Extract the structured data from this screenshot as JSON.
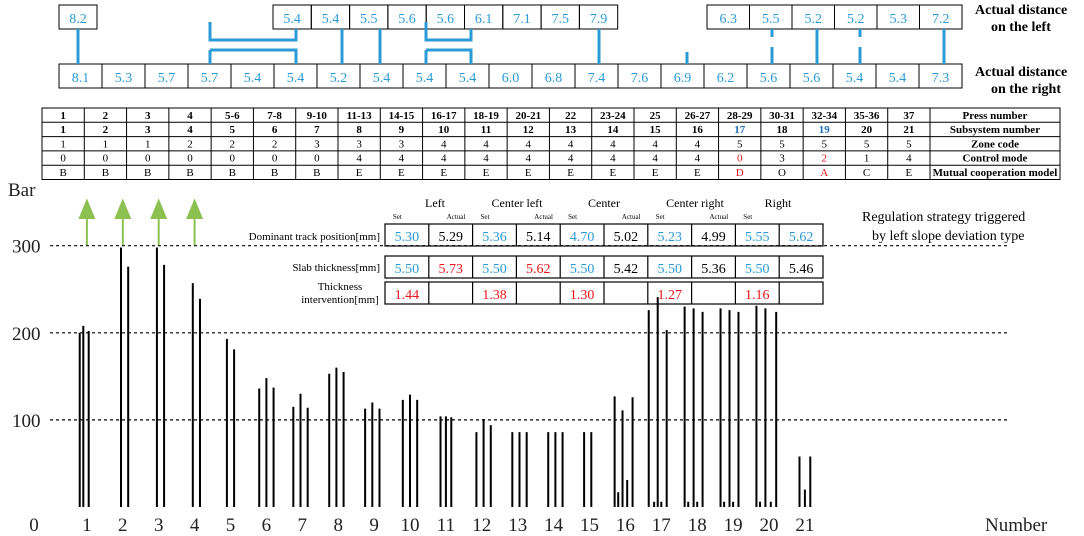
{
  "colors": {
    "blue": "#2a9bd6",
    "red": "#e8151b",
    "black": "#000000",
    "green": "#8cc152"
  },
  "top_rows": {
    "left_label_1": "Actual distance",
    "left_label_2": "on the left",
    "right_label_1": "Actual distance",
    "right_label_2": "on the right",
    "left_values": [
      "8.2",
      "5.4",
      "5.4",
      "5.5",
      "5.6",
      "5.6",
      "6.1",
      "7.1",
      "7.5",
      "7.9",
      "6.3",
      "5.5",
      "5.2",
      "5.2",
      "5.3",
      "7.2"
    ],
    "right_values": [
      "8.1",
      "5.3",
      "5.7",
      "5.7",
      "5.4",
      "5.4",
      "5.2",
      "5.4",
      "5.4",
      "5.4",
      "6.0",
      "6.8",
      "7.4",
      "7.6",
      "6.9",
      "6.2",
      "5.6",
      "5.6",
      "5.4",
      "5.4",
      "7.3"
    ]
  },
  "table": {
    "row_labels": [
      "Press number",
      "Subsystem number",
      "Zone code",
      "Control mode",
      "Mutual cooperation model"
    ],
    "press": [
      "1",
      "2",
      "3",
      "4",
      "5-6",
      "7-8",
      "9-10",
      "11-13",
      "14-15",
      "16-17",
      "18-19",
      "20-21",
      "22",
      "23-24",
      "25",
      "26-27",
      "28-29",
      "30-31",
      "32-34",
      "35-36",
      "37"
    ],
    "subsystem": [
      "1",
      "2",
      "3",
      "4",
      "5",
      "6",
      "7",
      "8",
      "9",
      "10",
      "11",
      "12",
      "13",
      "14",
      "15",
      "16",
      "17",
      "18",
      "19",
      "20",
      "21"
    ],
    "zone": [
      "1",
      "1",
      "1",
      "2",
      "2",
      "2",
      "3",
      "3",
      "3",
      "4",
      "4",
      "4",
      "4",
      "4",
      "4",
      "4",
      "5",
      "5",
      "5",
      "5",
      "5"
    ],
    "control": [
      "0",
      "0",
      "0",
      "0",
      "0",
      "0",
      "0",
      "4",
      "4",
      "4",
      "4",
      "4",
      "4",
      "4",
      "4",
      "4",
      "0",
      "3",
      "2",
      "1",
      "4"
    ],
    "model": [
      "B",
      "B",
      "B",
      "B",
      "B",
      "B",
      "B",
      "E",
      "E",
      "E",
      "E",
      "E",
      "E",
      "E",
      "E",
      "E",
      "D",
      "O",
      "A",
      "C",
      "E"
    ]
  },
  "regulation": {
    "note_1": "Regulation strategy triggered",
    "note_2": "by left slope deviation type",
    "headers": [
      "Left",
      "Center left",
      "Center",
      "Center right",
      "Right"
    ],
    "set_label": "Set",
    "actual_label": "Actual",
    "row_labels": [
      "Dominant track position[mm]",
      "Slab thickness[mm]",
      "Thickness",
      "intervention[mm]"
    ],
    "track": [
      "5.30",
      "5.29",
      "5.36",
      "5.14",
      "4.70",
      "5.02",
      "5.23",
      "4.99",
      "5.55",
      "5.62"
    ],
    "slab": [
      "5.50",
      "5.73",
      "5.50",
      "5.62",
      "5.50",
      "5.42",
      "5.50",
      "5.36",
      "5.50",
      "5.46"
    ],
    "intervention": [
      "1.44",
      "",
      "1.38",
      "",
      "1.30",
      "",
      "1.27",
      "",
      "1.16",
      ""
    ]
  },
  "chart_data": {
    "type": "bar",
    "ylabel": "Bar",
    "xlabel": "Number",
    "ylim": [
      0,
      350
    ],
    "yticks": [
      "100",
      "200",
      "300"
    ],
    "xticks": [
      "0",
      "1",
      "2",
      "3",
      "4",
      "5",
      "6",
      "7",
      "8",
      "9",
      "10",
      "11",
      "12",
      "13",
      "14",
      "15",
      "16",
      "17",
      "18",
      "19",
      "20",
      "21"
    ],
    "gridlines": [
      100,
      200,
      300
    ],
    "bars": [
      {
        "x": 0.8,
        "v": 200
      },
      {
        "x": 0.9,
        "v": 208
      },
      {
        "x": 1.05,
        "v": 202
      },
      {
        "x": 1.95,
        "v": 298
      },
      {
        "x": 2.15,
        "v": 276
      },
      {
        "x": 2.95,
        "v": 298
      },
      {
        "x": 3.15,
        "v": 278
      },
      {
        "x": 3.95,
        "v": 257
      },
      {
        "x": 4.15,
        "v": 239
      },
      {
        "x": 4.9,
        "v": 193
      },
      {
        "x": 5.1,
        "v": 181
      },
      {
        "x": 5.8,
        "v": 136
      },
      {
        "x": 6.0,
        "v": 148
      },
      {
        "x": 6.2,
        "v": 137
      },
      {
        "x": 6.75,
        "v": 115
      },
      {
        "x": 6.95,
        "v": 130
      },
      {
        "x": 7.15,
        "v": 114
      },
      {
        "x": 7.75,
        "v": 153
      },
      {
        "x": 7.95,
        "v": 160
      },
      {
        "x": 8.15,
        "v": 155
      },
      {
        "x": 8.75,
        "v": 113
      },
      {
        "x": 8.95,
        "v": 120
      },
      {
        "x": 9.15,
        "v": 113
      },
      {
        "x": 9.8,
        "v": 123
      },
      {
        "x": 10.0,
        "v": 129
      },
      {
        "x": 10.2,
        "v": 123
      },
      {
        "x": 10.85,
        "v": 104
      },
      {
        "x": 11.0,
        "v": 104
      },
      {
        "x": 11.15,
        "v": 103
      },
      {
        "x": 11.85,
        "v": 86
      },
      {
        "x": 12.05,
        "v": 101
      },
      {
        "x": 12.25,
        "v": 94
      },
      {
        "x": 12.85,
        "v": 86
      },
      {
        "x": 13.05,
        "v": 86
      },
      {
        "x": 13.25,
        "v": 86
      },
      {
        "x": 13.85,
        "v": 86
      },
      {
        "x": 14.05,
        "v": 86
      },
      {
        "x": 14.25,
        "v": 86
      },
      {
        "x": 14.85,
        "v": 86
      },
      {
        "x": 15.05,
        "v": 86
      },
      {
        "x": 15.7,
        "v": 127
      },
      {
        "x": 15.8,
        "v": 17
      },
      {
        "x": 15.92,
        "v": 111
      },
      {
        "x": 16.05,
        "v": 31
      },
      {
        "x": 16.2,
        "v": 126
      },
      {
        "x": 16.65,
        "v": 226
      },
      {
        "x": 16.8,
        "v": 6
      },
      {
        "x": 16.9,
        "v": 241
      },
      {
        "x": 17.0,
        "v": 6
      },
      {
        "x": 17.15,
        "v": 203
      },
      {
        "x": 17.65,
        "v": 230
      },
      {
        "x": 17.75,
        "v": 6
      },
      {
        "x": 17.9,
        "v": 228
      },
      {
        "x": 18.0,
        "v": 6
      },
      {
        "x": 18.15,
        "v": 224
      },
      {
        "x": 18.65,
        "v": 228
      },
      {
        "x": 18.75,
        "v": 6
      },
      {
        "x": 18.9,
        "v": 226
      },
      {
        "x": 19.0,
        "v": 6
      },
      {
        "x": 19.15,
        "v": 224
      },
      {
        "x": 19.65,
        "v": 231
      },
      {
        "x": 19.75,
        "v": 6
      },
      {
        "x": 19.9,
        "v": 228
      },
      {
        "x": 20.05,
        "v": 6
      },
      {
        "x": 20.2,
        "v": 224
      },
      {
        "x": 20.85,
        "v": 58
      },
      {
        "x": 21.0,
        "v": 20
      },
      {
        "x": 21.15,
        "v": 58
      }
    ],
    "arrows_at": [
      1,
      2,
      3,
      4
    ]
  }
}
